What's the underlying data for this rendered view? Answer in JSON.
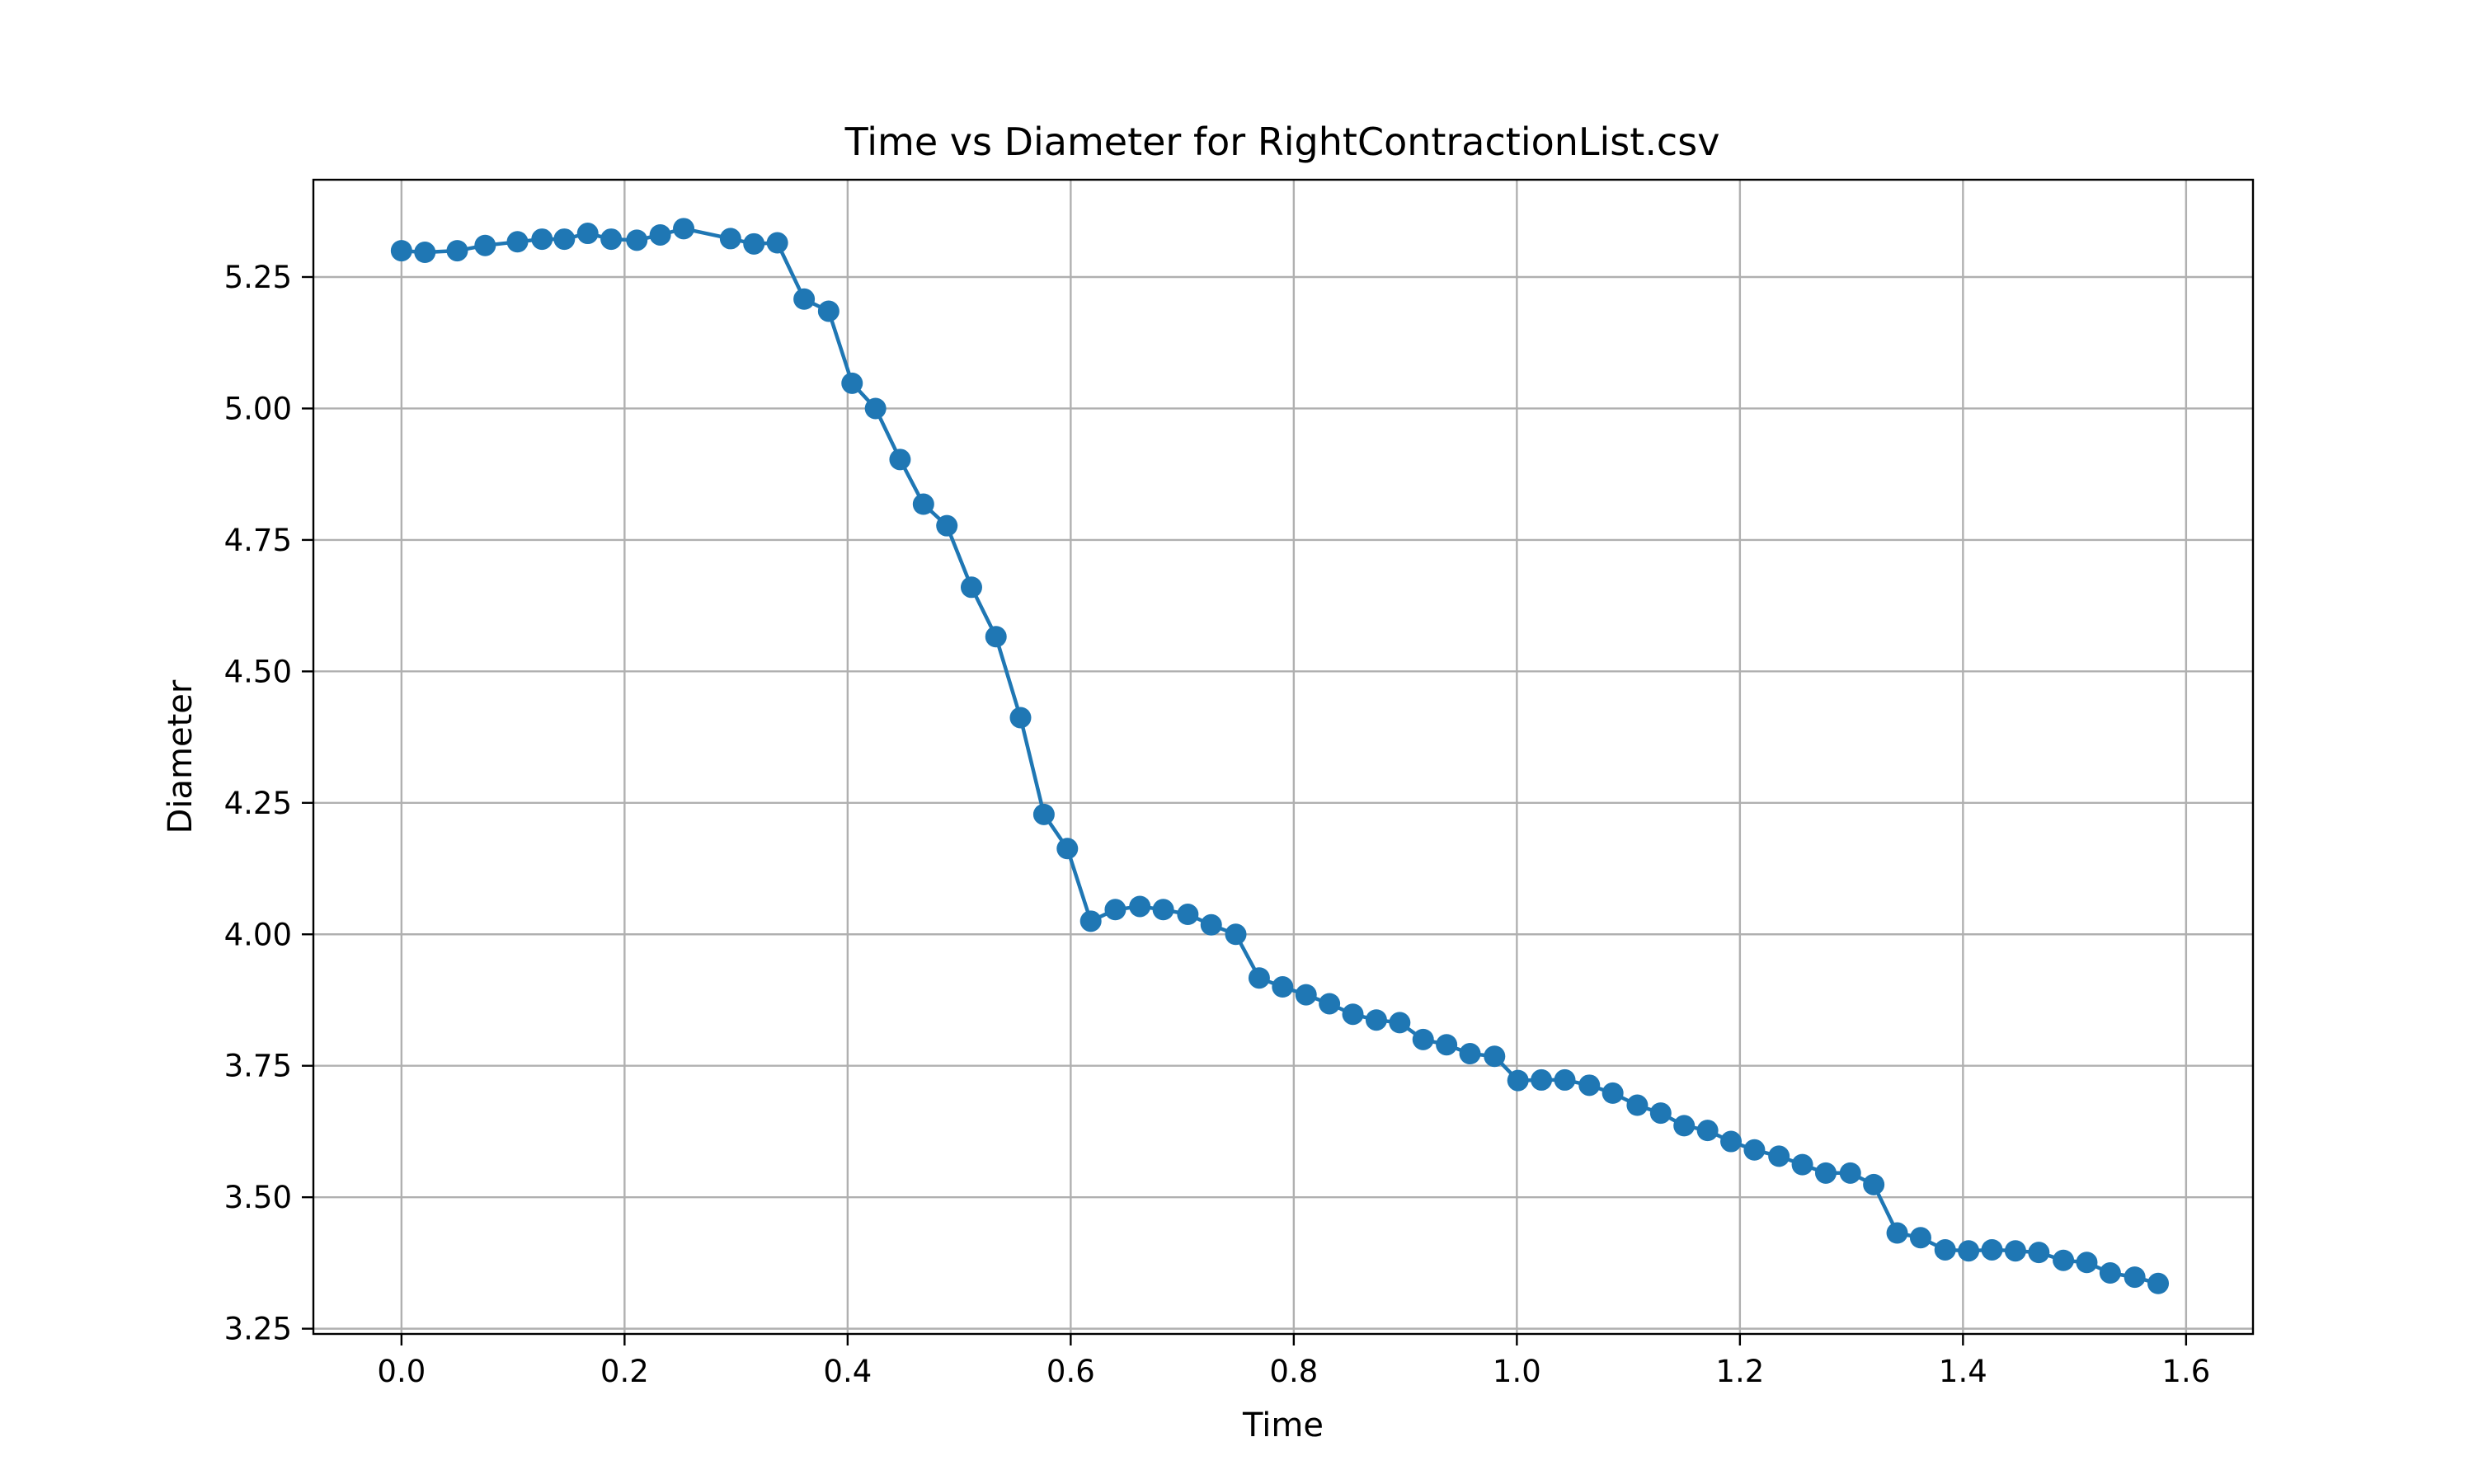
{
  "chart_data": {
    "type": "line",
    "title": "Time vs Diameter for RightContractionList.csv",
    "xlabel": "Time",
    "ylabel": "Diameter",
    "xlim": [
      -0.079,
      1.66
    ],
    "ylim": [
      3.24,
      5.435
    ],
    "xticks": [
      0.0,
      0.2,
      0.4,
      0.6,
      0.8,
      1.0,
      1.2,
      1.4,
      1.6
    ],
    "xtick_labels": [
      "0.0",
      "0.2",
      "0.4",
      "0.6",
      "0.8",
      "1.0",
      "1.2",
      "1.4",
      "1.6"
    ],
    "yticks": [
      3.25,
      3.5,
      3.75,
      4.0,
      4.25,
      4.5,
      4.75,
      5.0,
      5.25
    ],
    "ytick_labels": [
      "3.25",
      "3.50",
      "3.75",
      "4.00",
      "4.25",
      "4.50",
      "4.75",
      "5.00",
      "5.25"
    ],
    "grid": true,
    "color": "#1f77b4",
    "marker": "circle",
    "series": [
      {
        "x": [
          0.0,
          0.021,
          0.05,
          0.075,
          0.104,
          0.126,
          0.146,
          0.167,
          0.188,
          0.211,
          0.232,
          0.253,
          0.295,
          0.316,
          0.337,
          0.361,
          0.383,
          0.404,
          0.425,
          0.447,
          0.468,
          0.489,
          0.511,
          0.533,
          0.555,
          0.576,
          0.597,
          0.618,
          0.64,
          0.662,
          0.683,
          0.705,
          0.726,
          0.748,
          0.769,
          0.79,
          0.811,
          0.832,
          0.853,
          0.874,
          0.895,
          0.916,
          0.937,
          0.958,
          0.98,
          1.001,
          1.022,
          1.043,
          1.065,
          1.086,
          1.108,
          1.129,
          1.15,
          1.171,
          1.192,
          1.213,
          1.235,
          1.256,
          1.277,
          1.299,
          1.32,
          1.341,
          1.362,
          1.384,
          1.405,
          1.426,
          1.447,
          1.468,
          1.49,
          1.511,
          1.532,
          1.554,
          1.575
        ],
        "y": [
          5.3,
          5.297,
          5.3,
          5.31,
          5.317,
          5.322,
          5.322,
          5.333,
          5.322,
          5.32,
          5.33,
          5.342,
          5.323,
          5.313,
          5.315,
          5.208,
          5.185,
          5.048,
          5.0,
          4.903,
          4.818,
          4.777,
          4.66,
          4.566,
          4.412,
          4.228,
          4.163,
          4.025,
          4.047,
          4.053,
          4.047,
          4.038,
          4.018,
          4.0,
          3.917,
          3.9,
          3.885,
          3.868,
          3.848,
          3.837,
          3.832,
          3.8,
          3.79,
          3.773,
          3.768,
          3.722,
          3.723,
          3.723,
          3.713,
          3.698,
          3.675,
          3.66,
          3.636,
          3.627,
          3.606,
          3.59,
          3.578,
          3.562,
          3.546,
          3.546,
          3.524,
          3.432,
          3.423,
          3.4,
          3.398,
          3.4,
          3.398,
          3.395,
          3.38,
          3.376,
          3.356,
          3.348,
          3.336
        ]
      }
    ]
  }
}
